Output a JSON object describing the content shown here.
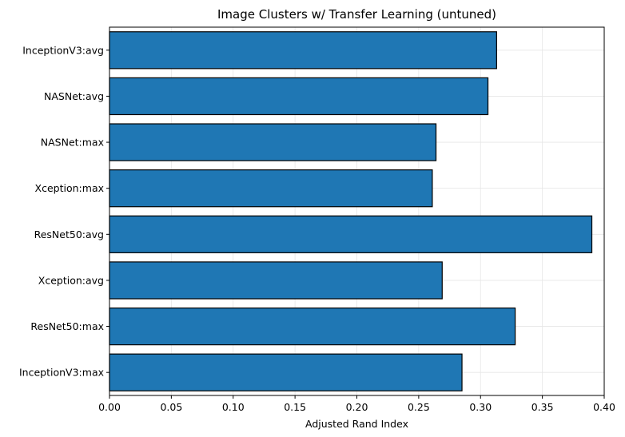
{
  "chart_data": {
    "type": "bar",
    "orientation": "horizontal",
    "title": "Image Clusters w/ Transfer Learning (untuned)",
    "xlabel": "Adjusted Rand Index",
    "ylabel": "",
    "xlim": [
      0,
      0.4
    ],
    "xticks": [
      "0.00",
      "0.05",
      "0.10",
      "0.15",
      "0.20",
      "0.25",
      "0.30",
      "0.35",
      "0.40"
    ],
    "categories": [
      "InceptionV3:avg",
      "NASNet:avg",
      "NASNet:max",
      "Xception:max",
      "ResNet50:avg",
      "Xception:avg",
      "ResNet50:max",
      "InceptionV3:max"
    ],
    "values": [
      0.313,
      0.306,
      0.264,
      0.261,
      0.39,
      0.269,
      0.328,
      0.285
    ],
    "bar_color": "#1f77b4",
    "edge_color": "#000000",
    "grid": true,
    "legend": "none"
  }
}
